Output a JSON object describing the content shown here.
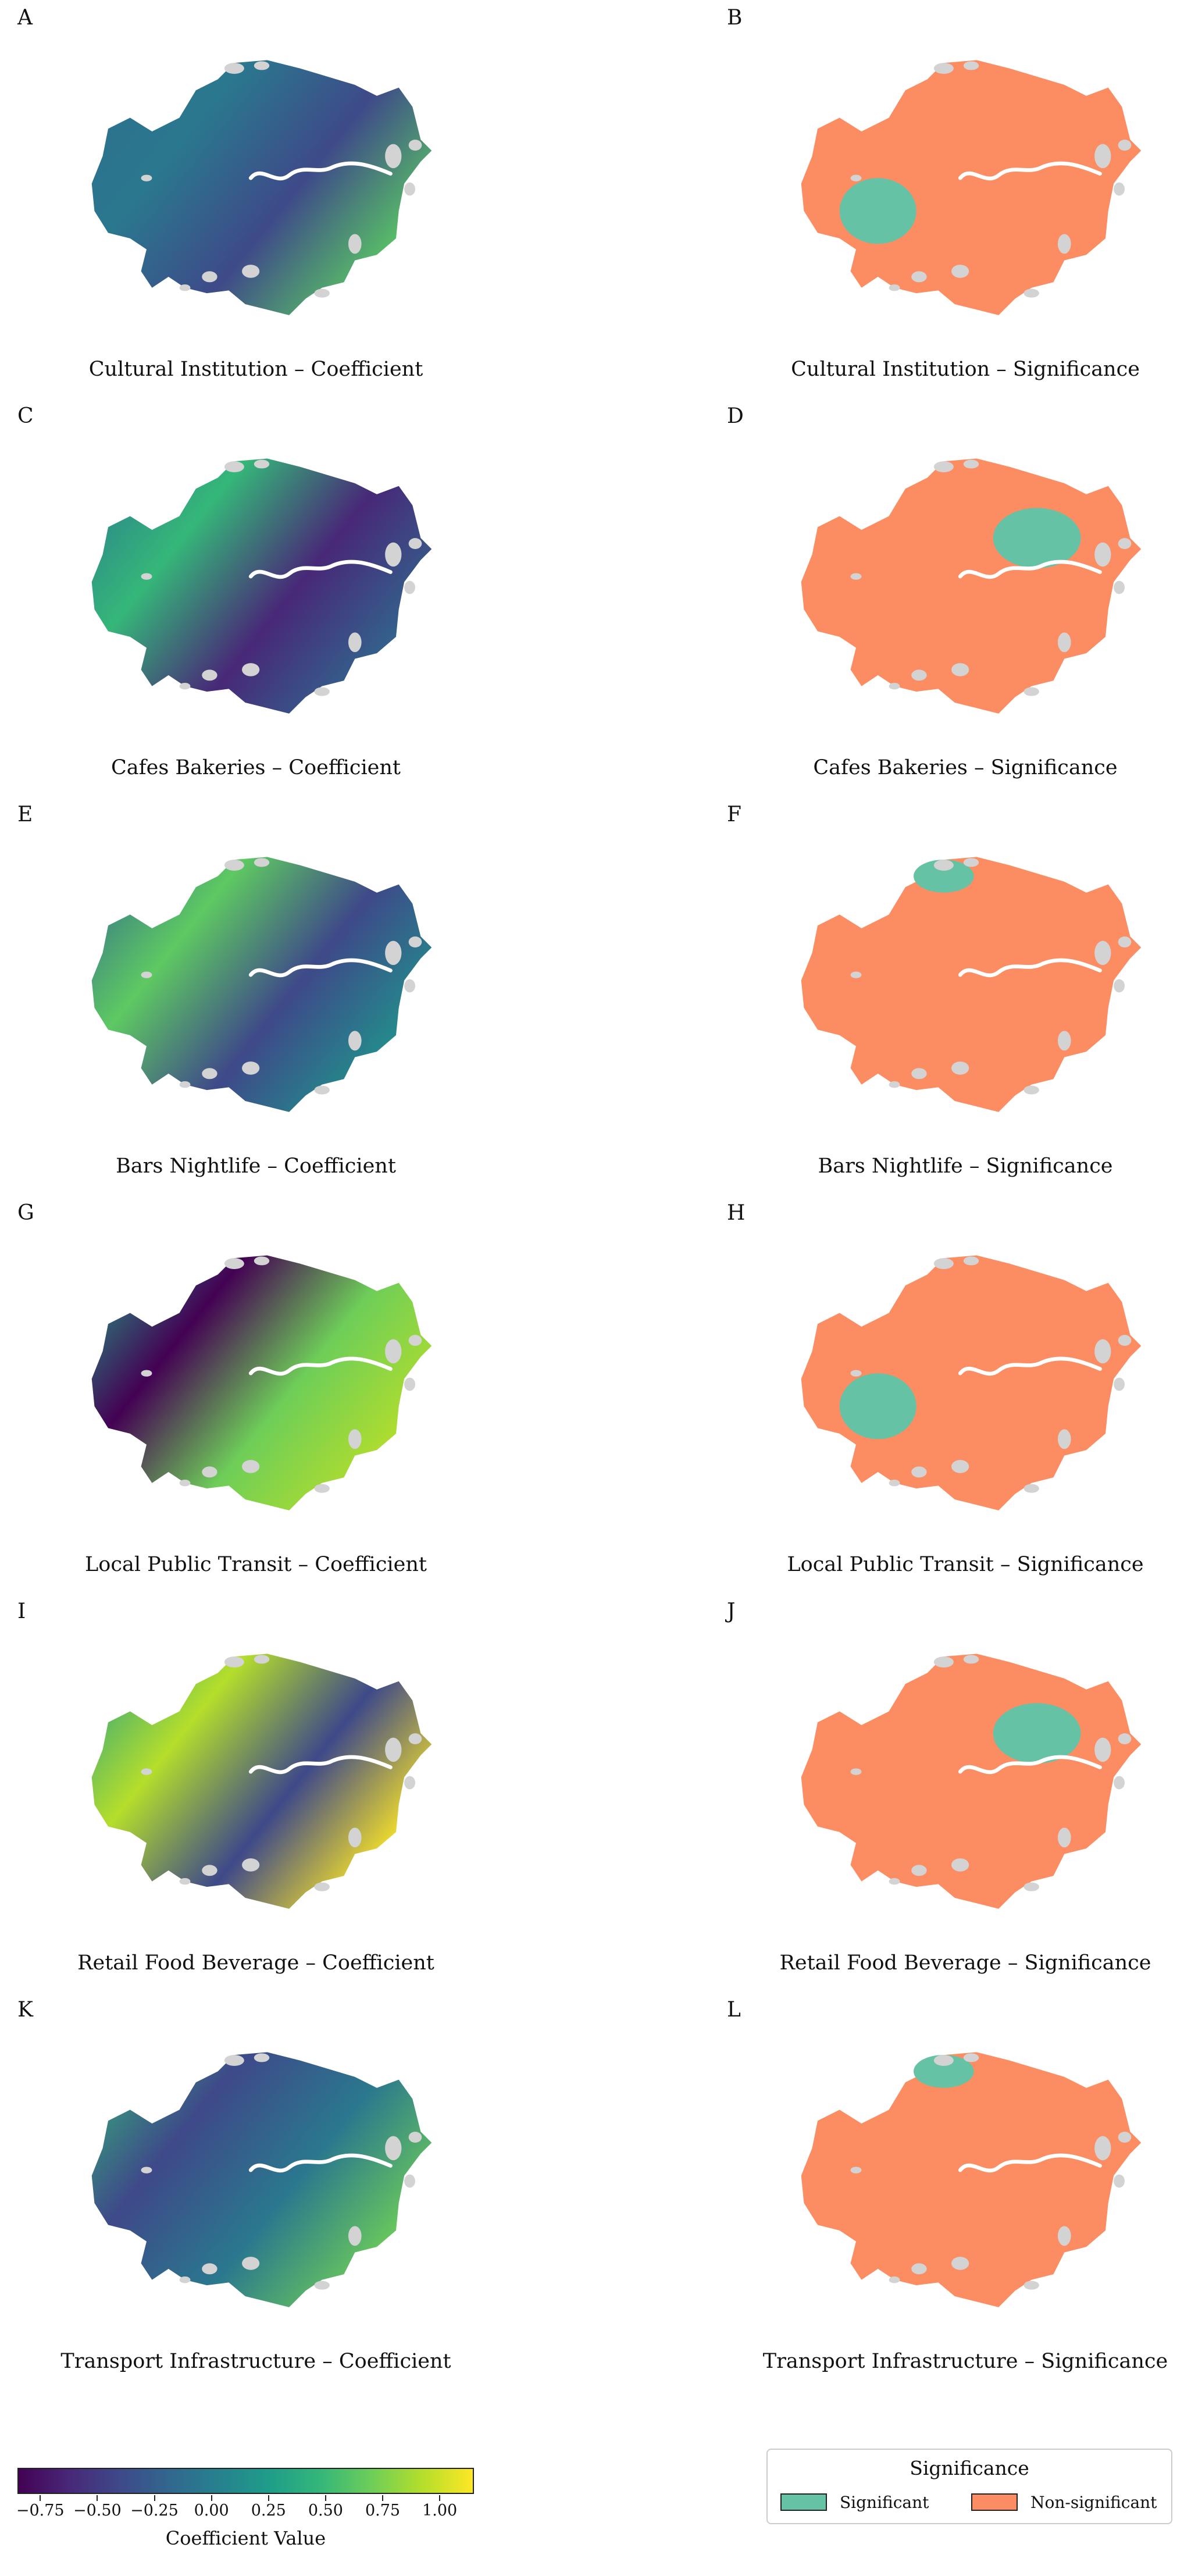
{
  "panels": [
    {
      "letter": "A",
      "caption": "Cultural Institution – Coefficient",
      "kind": "coef",
      "grad": [
        "#2e6e8e",
        "#2a788e",
        "#3e4a89",
        "#5ac864"
      ]
    },
    {
      "letter": "B",
      "caption": "Cultural Institution – Significance",
      "kind": "sig"
    },
    {
      "letter": "C",
      "caption": "Cafes Bakeries – Coefficient",
      "kind": "coef",
      "grad": [
        "#2a788e",
        "#35b779",
        "#482878",
        "#31688e"
      ]
    },
    {
      "letter": "D",
      "caption": "Cafes Bakeries – Significance",
      "kind": "sig"
    },
    {
      "letter": "E",
      "caption": "Bars Nightlife – Coefficient",
      "kind": "coef",
      "grad": [
        "#31688e",
        "#5ec962",
        "#3e4989",
        "#21918c"
      ]
    },
    {
      "letter": "F",
      "caption": "Bars Nightlife – Significance",
      "kind": "sig"
    },
    {
      "letter": "G",
      "caption": "Local Public Transit – Coefficient",
      "kind": "coef",
      "grad": [
        "#20a486",
        "#440154",
        "#6ece58",
        "#b5de2b"
      ]
    },
    {
      "letter": "H",
      "caption": "Local Public Transit – Significance",
      "kind": "sig"
    },
    {
      "letter": "I",
      "caption": "Retail Food Beverage – Coefficient",
      "kind": "coef",
      "grad": [
        "#1f9e89",
        "#b5de2b",
        "#3e4989",
        "#fde725"
      ]
    },
    {
      "letter": "J",
      "caption": "Retail Food Beverage – Significance",
      "kind": "sig"
    },
    {
      "letter": "K",
      "caption": "Transport Infrastructure – Coefficient",
      "kind": "coef",
      "grad": [
        "#35b779",
        "#3e4989",
        "#2a788e",
        "#6ece58"
      ]
    },
    {
      "letter": "L",
      "caption": "Transport Infrastructure – Significance",
      "kind": "sig"
    }
  ],
  "colorbar": {
    "title": "Coefficient Value",
    "min": -0.85,
    "max": 1.15,
    "ticks": [
      "−0.75",
      "−0.50",
      "−0.25",
      "0.00",
      "0.25",
      "0.50",
      "0.75",
      "1.00"
    ],
    "tick_values": [
      -0.75,
      -0.5,
      -0.25,
      0,
      0.25,
      0.5,
      0.75,
      1.0
    ]
  },
  "significance_legend": {
    "title": "Significance",
    "items": [
      {
        "label": "Significant",
        "color": "#66c2a5"
      },
      {
        "label": "Non-significant",
        "color": "#fc8d62"
      }
    ]
  },
  "colors": {
    "significant": "#66c2a5",
    "non_significant": "#fc8d62",
    "no_data": "#d3d3d3",
    "river": "#ffffff"
  }
}
